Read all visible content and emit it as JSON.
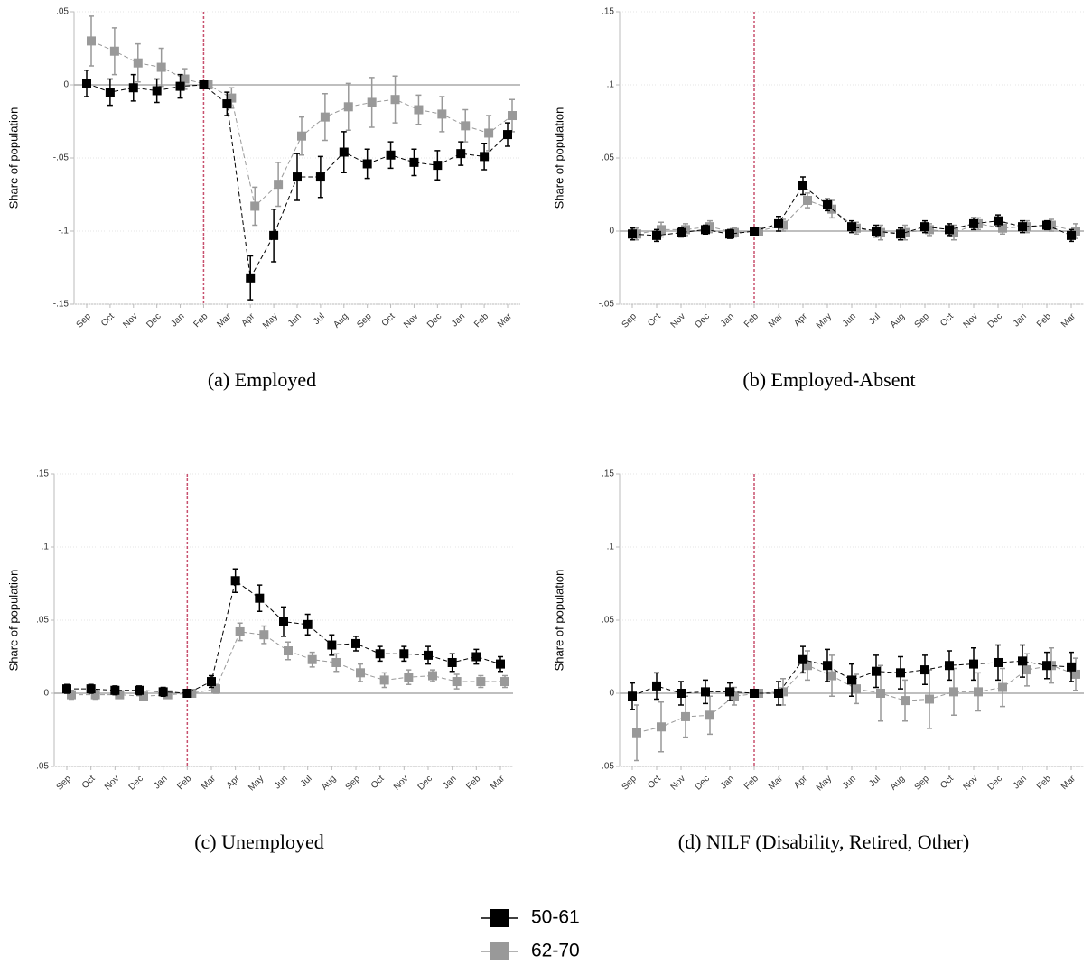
{
  "chart_data": [
    {
      "type": "line",
      "caption": "(a) Employed",
      "ylabel": "Share of population",
      "categories": [
        "Sep",
        "Oct",
        "Nov",
        "Dec",
        "Jan",
        "Feb",
        "Mar",
        "Apr",
        "May",
        "Jun",
        "Jul",
        "Aug",
        "Sep",
        "Oct",
        "Nov",
        "Dec",
        "Jan",
        "Feb",
        "Mar"
      ],
      "vline": 5,
      "ylim": [
        -0.15,
        0.05
      ],
      "yticks": [
        {
          "value": -0.15,
          "label": "-.15"
        },
        {
          "value": -0.1,
          "label": "-.1"
        },
        {
          "value": -0.05,
          "label": "-.05"
        },
        0,
        {
          "value": 0.05,
          "label": ".05"
        }
      ],
      "grid": true,
      "series": [
        {
          "color": "#000000",
          "values": [
            0.001,
            -0.005,
            -0.002,
            -0.004,
            -0.001,
            0,
            -0.013,
            -0.132,
            -0.103,
            -0.063,
            -0.063,
            -0.046,
            -0.054,
            -0.048,
            -0.053,
            -0.055,
            -0.047,
            -0.049,
            -0.034
          ],
          "errors": [
            0.009,
            0.009,
            0.009,
            0.008,
            0.008,
            0,
            0.008,
            0.015,
            0.018,
            0.016,
            0.014,
            0.014,
            0.01,
            0.009,
            0.009,
            0.01,
            0.008,
            0.009,
            0.008
          ]
        },
        {
          "color": "#999999",
          "values": [
            0.03,
            0.023,
            0.015,
            0.012,
            0.004,
            0,
            -0.009,
            -0.083,
            -0.068,
            -0.035,
            -0.022,
            -0.015,
            -0.012,
            -0.01,
            -0.017,
            -0.02,
            -0.028,
            -0.033,
            -0.021
          ],
          "errors": [
            0.017,
            0.016,
            0.013,
            0.013,
            0.007,
            0,
            0.007,
            0.013,
            0.015,
            0.013,
            0.016,
            0.016,
            0.017,
            0.016,
            0.01,
            0.012,
            0.011,
            0.012,
            0.011
          ]
        }
      ]
    },
    {
      "type": "line",
      "caption": "(b) Employed-Absent",
      "ylabel": "Share of population",
      "categories": [
        "Sep",
        "Oct",
        "Nov",
        "Dec",
        "Jan",
        "Feb",
        "Mar",
        "Apr",
        "May",
        "Jun",
        "Jul",
        "Aug",
        "Sep",
        "Oct",
        "Nov",
        "Dec",
        "Jan",
        "Feb",
        "Mar"
      ],
      "vline": 5,
      "ylim": [
        -0.05,
        0.15
      ],
      "yticks": [
        {
          "value": -0.05,
          "label": "-.05"
        },
        0,
        {
          "value": 0.05,
          "label": ".05"
        },
        {
          "value": 0.1,
          "label": ".1"
        },
        {
          "value": 0.15,
          "label": ".15"
        }
      ],
      "grid": true,
      "series": [
        {
          "color": "#000000",
          "values": [
            -0.002,
            -0.003,
            -0.001,
            0.001,
            -0.002,
            0,
            0.005,
            0.031,
            0.018,
            0.003,
            0.0,
            -0.002,
            0.003,
            0.001,
            0.005,
            0.007,
            0.003,
            0.004,
            -0.003
          ],
          "errors": [
            0.004,
            0.004,
            0.003,
            0.003,
            0.003,
            0,
            0.005,
            0.006,
            0.004,
            0.004,
            0.004,
            0.004,
            0.004,
            0.004,
            0.004,
            0.004,
            0.004,
            0.003,
            0.004
          ]
        },
        {
          "color": "#999999",
          "values": [
            -0.002,
            0.001,
            0.001,
            0.003,
            -0.001,
            0,
            0.004,
            0.021,
            0.015,
            0.002,
            -0.001,
            -0.001,
            0.001,
            -0.001,
            0.005,
            0.002,
            0.003,
            0.004,
            0
          ],
          "errors": [
            0.004,
            0.005,
            0.004,
            0.004,
            0.003,
            0,
            0.004,
            0.005,
            0.006,
            0.004,
            0.005,
            0.005,
            0.004,
            0.005,
            0.004,
            0.004,
            0.004,
            0.004,
            0.005
          ]
        }
      ]
    },
    {
      "type": "line",
      "caption": "(c) Unemployed",
      "ylabel": "Share of population",
      "categories": [
        "Sep",
        "Oct",
        "Nov",
        "Dec",
        "Jan",
        "Feb",
        "Mar",
        "Apr",
        "May",
        "Jun",
        "Jul",
        "Aug",
        "Sep",
        "Oct",
        "Nov",
        "Dec",
        "Jan",
        "Feb",
        "Mar"
      ],
      "vline": 5,
      "ylim": [
        -0.05,
        0.15
      ],
      "yticks": [
        {
          "value": -0.05,
          "label": "-.05"
        },
        0,
        {
          "value": 0.05,
          "label": ".05"
        },
        {
          "value": 0.1,
          "label": ".1"
        },
        {
          "value": 0.15,
          "label": ".15"
        }
      ],
      "grid": true,
      "series": [
        {
          "color": "#000000",
          "values": [
            0.003,
            0.003,
            0.002,
            0.002,
            0.001,
            0,
            0.008,
            0.077,
            0.065,
            0.049,
            0.047,
            0.033,
            0.034,
            0.027,
            0.027,
            0.026,
            0.021,
            0.025,
            0.02
          ],
          "errors": [
            0.003,
            0.003,
            0.003,
            0.003,
            0.003,
            0,
            0.004,
            0.008,
            0.009,
            0.01,
            0.007,
            0.007,
            0.005,
            0.005,
            0.005,
            0.006,
            0.006,
            0.005,
            0.005
          ]
        },
        {
          "color": "#999999",
          "values": [
            -0.001,
            -0.001,
            -0.001,
            -0.002,
            -0.001,
            0,
            0.003,
            0.042,
            0.04,
            0.029,
            0.023,
            0.021,
            0.014,
            0.009,
            0.011,
            0.012,
            0.008,
            0.008,
            0.008
          ],
          "errors": [
            0.003,
            0.003,
            0.002,
            0.002,
            0.002,
            0,
            0.003,
            0.006,
            0.006,
            0.006,
            0.005,
            0.006,
            0.006,
            0.005,
            0.005,
            0.004,
            0.005,
            0.004,
            0.004
          ]
        }
      ]
    },
    {
      "type": "line",
      "caption": "(d) NILF (Disability, Retired, Other)",
      "ylabel": "Share of population",
      "categories": [
        "Sep",
        "Oct",
        "Nov",
        "Dec",
        "Jan",
        "Feb",
        "Mar",
        "Apr",
        "May",
        "Jun",
        "Jul",
        "Aug",
        "Sep",
        "Oct",
        "Nov",
        "Dec",
        "Jan",
        "Feb",
        "Mar"
      ],
      "vline": 5,
      "ylim": [
        -0.05,
        0.15
      ],
      "yticks": [
        {
          "value": -0.05,
          "label": "-.05"
        },
        0,
        {
          "value": 0.05,
          "label": ".05"
        },
        {
          "value": 0.1,
          "label": ".1"
        },
        {
          "value": 0.15,
          "label": ".15"
        }
      ],
      "grid": true,
      "series": [
        {
          "color": "#000000",
          "values": [
            -0.002,
            0.005,
            0,
            0.001,
            0.001,
            0,
            0,
            0.023,
            0.019,
            0.009,
            0.015,
            0.014,
            0.016,
            0.019,
            0.02,
            0.021,
            0.022,
            0.019,
            0.018
          ],
          "errors": [
            0.009,
            0.009,
            0.008,
            0.008,
            0.006,
            0,
            0.008,
            0.009,
            0.011,
            0.011,
            0.011,
            0.011,
            0.01,
            0.01,
            0.011,
            0.012,
            0.011,
            0.009,
            0.01
          ]
        },
        {
          "color": "#999999",
          "values": [
            -0.027,
            -0.023,
            -0.016,
            -0.015,
            -0.002,
            0,
            0.001,
            0.019,
            0.012,
            0.003,
            0,
            -0.005,
            -0.004,
            0.001,
            0.001,
            0.004,
            0.016,
            0.019,
            0.013
          ],
          "errors": [
            0.019,
            0.017,
            0.014,
            0.013,
            0.006,
            0,
            0.009,
            0.01,
            0.014,
            0.01,
            0.019,
            0.014,
            0.02,
            0.016,
            0.013,
            0.013,
            0.011,
            0.012,
            0.011
          ]
        }
      ]
    }
  ],
  "legend": {
    "series": [
      {
        "name": "50-61",
        "color": "#000000"
      },
      {
        "name": "62-70",
        "color": "#999999"
      }
    ]
  }
}
